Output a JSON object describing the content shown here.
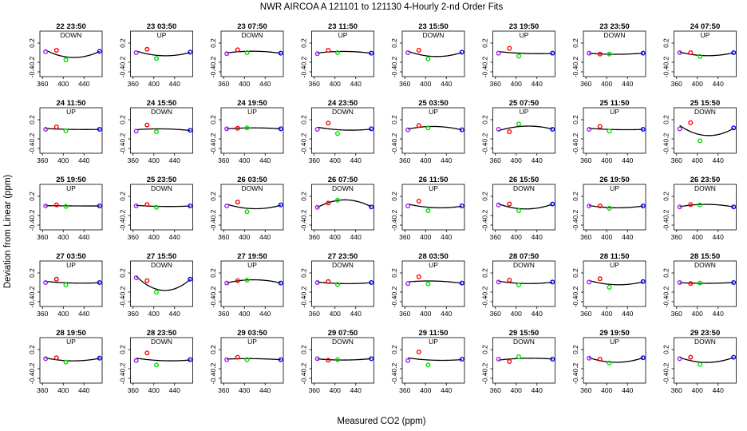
{
  "chart_data": {
    "type": "scatter",
    "title": "NWR   AIRCOA A   121101 to 121130   4-Hourly 2-nd Order Fits",
    "xlabel": "Measured CO2 (ppm)",
    "ylabel": "Deviation from Linear (ppm)",
    "xlim": [
      355,
      475
    ],
    "ylim": [
      -0.5,
      0.45
    ],
    "xticks": [
      360,
      400,
      440
    ],
    "xtick_labels": [
      "360",
      "400",
      "440"
    ],
    "yticks": [
      -0.4,
      -0.2,
      0.2
    ],
    "ytick_labels": [
      "-0.4",
      "-0.2",
      "0.2"
    ],
    "point_x": [
      366,
      387,
      405,
      470
    ],
    "series_colors": {
      "std1": "#a020f0",
      "std2": "#ff0000",
      "std3": "#00dd00",
      "std4": "#0000ff",
      "fit": "#000000"
    },
    "panels": [
      {
        "label": "22 23:50",
        "dir": "DOWN",
        "y": [
          0.02,
          0.05,
          -0.15,
          0.03
        ]
      },
      {
        "label": "23 03:50",
        "dir": "UP",
        "y": [
          0.0,
          0.07,
          -0.12,
          0.01
        ]
      },
      {
        "label": "23 07:50",
        "dir": "DOWN",
        "y": [
          -0.02,
          0.06,
          0.0,
          -0.01
        ]
      },
      {
        "label": "23 11:50",
        "dir": "UP",
        "y": [
          -0.02,
          0.05,
          0.0,
          -0.01
        ]
      },
      {
        "label": "23 15:50",
        "dir": "DOWN",
        "y": [
          0.0,
          0.05,
          -0.13,
          0.01
        ]
      },
      {
        "label": "23 19:50",
        "dir": "UP",
        "y": [
          -0.01,
          0.09,
          -0.07,
          -0.01
        ]
      },
      {
        "label": "23 23:50",
        "dir": "DOWN",
        "y": [
          -0.01,
          -0.03,
          -0.03,
          -0.01
        ]
      },
      {
        "label": "24 07:50",
        "dir": "UP",
        "y": [
          0.0,
          0.0,
          -0.08,
          0.0
        ]
      },
      {
        "label": "24 11:50",
        "dir": "UP",
        "y": [
          0.0,
          0.05,
          -0.03,
          0.0
        ]
      },
      {
        "label": "24 15:50",
        "dir": "DOWN",
        "y": [
          -0.04,
          0.09,
          -0.05,
          -0.02
        ]
      },
      {
        "label": "24 19:50",
        "dir": "UP",
        "y": [
          0.01,
          0.02,
          0.03,
          0.01
        ]
      },
      {
        "label": "24 23:50",
        "dir": "DOWN",
        "y": [
          0.0,
          0.13,
          -0.09,
          0.01
        ]
      },
      {
        "label": "25 03:50",
        "dir": "UP",
        "y": [
          -0.01,
          0.08,
          0.03,
          -0.01
        ]
      },
      {
        "label": "25 07:50",
        "dir": "UP",
        "y": [
          0.0,
          -0.05,
          0.11,
          0.0
        ]
      },
      {
        "label": "25 11:50",
        "dir": "UP",
        "y": [
          0.0,
          0.06,
          -0.04,
          0.0
        ]
      },
      {
        "label": "25 15:50",
        "dir": "DOWN",
        "y": [
          0.01,
          0.14,
          -0.24,
          0.03
        ]
      },
      {
        "label": "25 19:50",
        "dir": "UP",
        "y": [
          0.0,
          0.02,
          -0.01,
          0.0
        ]
      },
      {
        "label": "25 23:50",
        "dir": "DOWN",
        "y": [
          0.0,
          0.03,
          -0.03,
          0.0
        ]
      },
      {
        "label": "26 03:50",
        "dir": "DOWN",
        "y": [
          0.0,
          0.08,
          -0.12,
          0.02
        ]
      },
      {
        "label": "26 07:50",
        "dir": "DOWN",
        "y": [
          -0.03,
          0.06,
          0.12,
          -0.02
        ]
      },
      {
        "label": "26 11:50",
        "dir": "UP",
        "y": [
          0.0,
          0.1,
          -0.1,
          0.0
        ]
      },
      {
        "label": "26 15:50",
        "dir": "DOWN",
        "y": [
          0.02,
          0.04,
          -0.1,
          0.04
        ]
      },
      {
        "label": "26 19:50",
        "dir": "UP",
        "y": [
          0.0,
          0.0,
          -0.05,
          0.0
        ]
      },
      {
        "label": "26 23:50",
        "dir": "DOWN",
        "y": [
          -0.02,
          0.03,
          0.02,
          -0.02
        ]
      },
      {
        "label": "27 03:50",
        "dir": "UP",
        "y": [
          0.0,
          0.07,
          -0.05,
          0.0
        ]
      },
      {
        "label": "27 15:50",
        "dir": "DOWN",
        "y": [
          0.1,
          0.04,
          -0.2,
          0.07
        ]
      },
      {
        "label": "27 19:50",
        "dir": "UP",
        "y": [
          -0.01,
          0.04,
          0.05,
          -0.01
        ]
      },
      {
        "label": "27 23:50",
        "dir": "DOWN",
        "y": [
          0.0,
          0.02,
          -0.04,
          0.0
        ]
      },
      {
        "label": "28 03:50",
        "dir": "UP",
        "y": [
          -0.02,
          0.12,
          -0.03,
          -0.01
        ]
      },
      {
        "label": "28 07:50",
        "dir": "DOWN",
        "y": [
          0.01,
          0.05,
          -0.05,
          0.01
        ]
      },
      {
        "label": "28 11:50",
        "dir": "UP",
        "y": [
          0.01,
          0.08,
          -0.1,
          0.02
        ]
      },
      {
        "label": "28 15:50",
        "dir": "DOWN",
        "y": [
          0.0,
          -0.02,
          -0.01,
          0.0
        ]
      },
      {
        "label": "28 19:50",
        "dir": "UP",
        "y": [
          0.01,
          0.03,
          -0.06,
          0.02
        ]
      },
      {
        "label": "28 23:50",
        "dir": "DOWN",
        "y": [
          -0.03,
          0.13,
          -0.12,
          -0.01
        ]
      },
      {
        "label": "29 03:50",
        "dir": "UP",
        "y": [
          -0.01,
          0.04,
          -0.01,
          -0.01
        ]
      },
      {
        "label": "29 07:50",
        "dir": "DOWN",
        "y": [
          0.01,
          -0.02,
          -0.01,
          0.01
        ]
      },
      {
        "label": "29 11:50",
        "dir": "UP",
        "y": [
          -0.03,
          0.15,
          -0.12,
          0.0
        ]
      },
      {
        "label": "29 15:50",
        "dir": "DOWN",
        "y": [
          0.0,
          -0.05,
          0.05,
          0.0
        ]
      },
      {
        "label": "29 19:50",
        "dir": "UP",
        "y": [
          0.02,
          0.0,
          -0.08,
          0.03
        ]
      },
      {
        "label": "29 23:50",
        "dir": "DOWN",
        "y": [
          0.01,
          0.04,
          -0.11,
          0.04
        ]
      }
    ]
  }
}
